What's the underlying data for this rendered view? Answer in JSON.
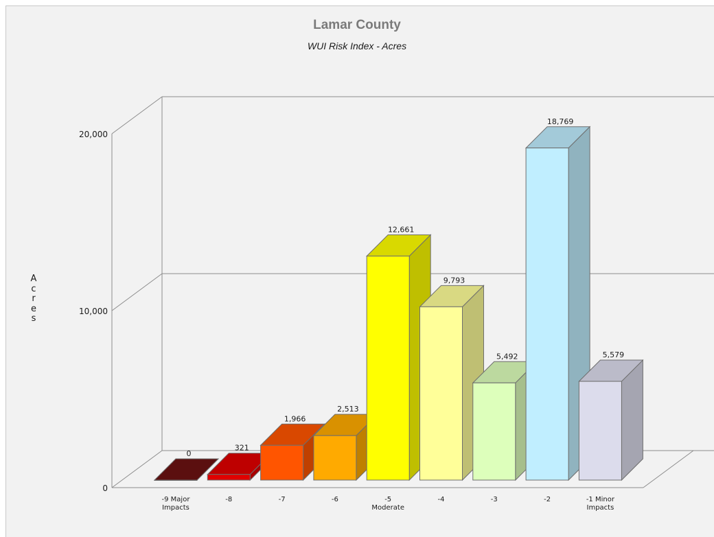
{
  "chart_data": {
    "type": "bar",
    "title": "Lamar County",
    "subtitle": "WUI Risk Index - Acres",
    "ylabel": "Acres",
    "xlabel": "",
    "ylim": [
      0,
      20000
    ],
    "yticks": [
      "0",
      "10,000",
      "20,000"
    ],
    "ytick_values": [
      0,
      10000,
      20000
    ],
    "grid": true,
    "style": "3d",
    "categories": [
      [
        "-9 Major",
        "Impacts"
      ],
      [
        "-8"
      ],
      [
        "-7"
      ],
      [
        "-6"
      ],
      [
        "-5",
        "Moderate"
      ],
      [
        "-4"
      ],
      [
        "-3"
      ],
      [
        "-2"
      ],
      [
        "-1 Minor",
        "Impacts"
      ]
    ],
    "values": [
      0,
      321,
      1966,
      2513,
      12661,
      9793,
      5492,
      18769,
      5579
    ],
    "data_labels": [
      "0",
      "321",
      "1,966",
      "2,513",
      "12,661",
      "9,793",
      "5,492",
      "18,769",
      "5,579"
    ],
    "colors": [
      "#6b1212",
      "#e00000",
      "#ff5500",
      "#ffaa00",
      "#ffff00",
      "#ffff99",
      "#ddffbb",
      "#c0eeff",
      "#dcdcec"
    ]
  }
}
